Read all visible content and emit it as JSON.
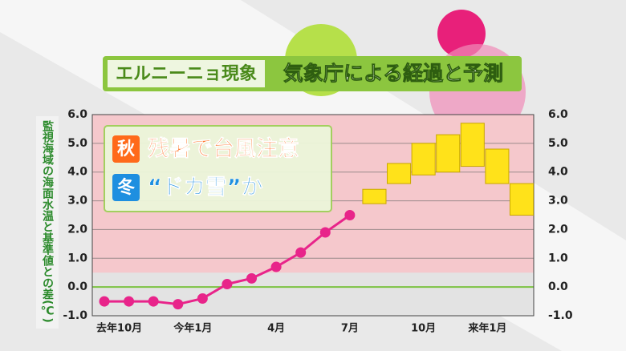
{
  "chart_data": {
    "type": "line",
    "title": "エルニーニョ現象",
    "subtitle": "気象庁による経過と予測",
    "y_label": "監視海域の海面水温と基準値との差(℃)",
    "annotations": [
      {
        "badge": "秋",
        "text": "残暑で台風注意",
        "color": "#ff6a1a"
      },
      {
        "badge": "冬",
        "text": "“ドカ雪”か",
        "color": "#1e8fe0"
      }
    ],
    "categories": [
      null,
      "去年10月",
      null,
      null,
      "今年1月",
      null,
      null,
      "4月",
      null,
      null,
      "7月",
      null,
      null,
      "10月",
      null,
      null,
      "来年1月",
      null
    ],
    "series": [
      {
        "color": "#e8248a",
        "values": [
          -0.5,
          -0.5,
          -0.5,
          -0.6,
          -0.4,
          0.1,
          0.3,
          0.7,
          1.2,
          1.9,
          2.5,
          null,
          null,
          null,
          null,
          null,
          null,
          null
        ]
      }
    ],
    "forecast": {
      "color": "#ffe21a",
      "low": [
        null,
        null,
        null,
        null,
        null,
        null,
        null,
        null,
        null,
        null,
        null,
        2.9,
        3.6,
        3.9,
        4.0,
        4.2,
        3.6,
        2.5
      ],
      "high": [
        null,
        null,
        null,
        null,
        null,
        null,
        null,
        null,
        null,
        null,
        null,
        3.4,
        4.3,
        5.0,
        5.3,
        5.7,
        4.8,
        3.6
      ]
    },
    "ylim": [
      -1,
      6
    ],
    "yticks": [
      {
        "value": 6,
        "label": "6.0"
      },
      {
        "value": 5,
        "label": "5.0"
      },
      {
        "value": 4,
        "label": "4.0"
      },
      {
        "value": 3,
        "label": "3.0"
      },
      {
        "value": 2,
        "label": "2.0"
      },
      {
        "value": 1,
        "label": "1.0"
      },
      {
        "value": 0,
        "label": "0.0"
      },
      {
        "value": -1,
        "label": "-1.0"
      }
    ],
    "highlight_from": 0.5,
    "grid": true
  }
}
